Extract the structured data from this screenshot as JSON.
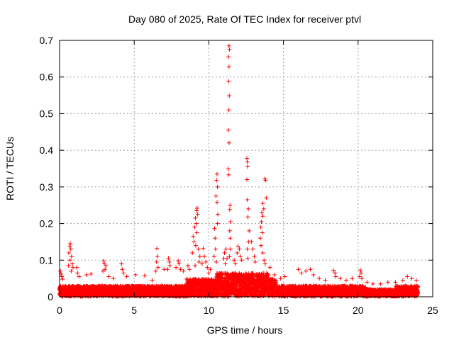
{
  "chart_data": {
    "type": "scatter",
    "title": "Day 080 of 2025, Rate Of TEC Index for receiver ptvl",
    "xlabel": "GPS time / hours",
    "ylabel": "ROTI / TECUs",
    "xlim": [
      0,
      25
    ],
    "ylim": [
      0,
      0.7
    ],
    "xticks": [
      "0",
      "5",
      "10",
      "15",
      "20",
      "25"
    ],
    "yticks": [
      "0",
      "0.1",
      "0.2",
      "0.3",
      "0.4",
      "0.5",
      "0.6",
      "0.7"
    ],
    "grid": true,
    "marker": "plus",
    "series_color": "#ff0000",
    "background_band": {
      "x_start": 0.0,
      "x_end": 24.0,
      "x_step": 0.02
    },
    "points": [
      [
        11.35,
        0.685
      ],
      [
        11.38,
        0.675
      ],
      [
        11.32,
        0.655
      ],
      [
        11.35,
        0.628
      ],
      [
        11.33,
        0.588
      ],
      [
        11.37,
        0.549
      ],
      [
        11.34,
        0.51
      ],
      [
        11.31,
        0.455
      ],
      [
        11.36,
        0.42
      ],
      [
        11.3,
        0.349
      ],
      [
        11.33,
        0.333
      ],
      [
        11.42,
        0.25
      ],
      [
        11.4,
        0.238
      ],
      [
        11.45,
        0.205
      ],
      [
        11.4,
        0.18
      ],
      [
        11.43,
        0.16
      ],
      [
        11.45,
        0.13
      ],
      [
        11.38,
        0.11
      ],
      [
        10.55,
        0.335
      ],
      [
        10.52,
        0.318
      ],
      [
        10.58,
        0.3
      ],
      [
        10.48,
        0.275
      ],
      [
        10.55,
        0.258
      ],
      [
        10.6,
        0.225
      ],
      [
        10.58,
        0.2
      ],
      [
        10.38,
        0.186
      ],
      [
        10.42,
        0.16
      ],
      [
        10.45,
        0.13
      ],
      [
        10.35,
        0.11
      ],
      [
        10.5,
        0.095
      ],
      [
        12.55,
        0.378
      ],
      [
        12.58,
        0.368
      ],
      [
        12.6,
        0.355
      ],
      [
        12.55,
        0.32
      ],
      [
        12.57,
        0.265
      ],
      [
        12.65,
        0.24
      ],
      [
        12.62,
        0.218
      ],
      [
        12.7,
        0.18
      ],
      [
        12.66,
        0.15
      ],
      [
        12.58,
        0.13
      ],
      [
        12.62,
        0.105
      ],
      [
        13.75,
        0.322
      ],
      [
        13.8,
        0.318
      ],
      [
        13.85,
        0.27
      ],
      [
        13.62,
        0.255
      ],
      [
        13.68,
        0.24
      ],
      [
        13.55,
        0.23
      ],
      [
        13.62,
        0.22
      ],
      [
        13.52,
        0.205
      ],
      [
        13.48,
        0.19
      ],
      [
        13.58,
        0.175
      ],
      [
        13.45,
        0.16
      ],
      [
        13.5,
        0.14
      ],
      [
        13.62,
        0.12
      ],
      [
        13.7,
        0.1
      ],
      [
        13.78,
        0.09
      ],
      [
        12.85,
        0.15
      ],
      [
        12.95,
        0.13
      ],
      [
        13.05,
        0.11
      ],
      [
        13.1,
        0.095
      ],
      [
        11.9,
        0.12
      ],
      [
        11.95,
        0.138
      ],
      [
        12.05,
        0.13
      ],
      [
        12.1,
        0.11
      ],
      [
        12.2,
        0.1
      ],
      [
        11.7,
        0.1
      ],
      [
        11.78,
        0.09
      ],
      [
        11.0,
        0.105
      ],
      [
        11.05,
        0.12
      ],
      [
        11.15,
        0.13
      ],
      [
        11.22,
        0.105
      ],
      [
        11.1,
        0.09
      ],
      [
        9.22,
        0.242
      ],
      [
        9.18,
        0.235
      ],
      [
        9.25,
        0.225
      ],
      [
        9.1,
        0.215
      ],
      [
        9.15,
        0.2
      ],
      [
        9.05,
        0.19
      ],
      [
        9.2,
        0.175
      ],
      [
        8.95,
        0.165
      ],
      [
        9.0,
        0.15
      ],
      [
        9.12,
        0.14
      ],
      [
        9.3,
        0.13
      ],
      [
        8.9,
        0.12
      ],
      [
        9.4,
        0.11
      ],
      [
        9.35,
        0.095
      ],
      [
        9.08,
        0.085
      ],
      [
        9.62,
        0.132
      ],
      [
        9.7,
        0.11
      ],
      [
        9.8,
        0.095
      ],
      [
        9.55,
        0.09
      ],
      [
        9.9,
        0.08
      ],
      [
        0.72,
        0.145
      ],
      [
        0.68,
        0.138
      ],
      [
        0.75,
        0.13
      ],
      [
        0.62,
        0.12
      ],
      [
        0.8,
        0.11
      ],
      [
        0.7,
        0.1
      ],
      [
        0.85,
        0.09
      ],
      [
        0.6,
        0.085
      ],
      [
        0.9,
        0.08
      ],
      [
        0.78,
        0.07
      ],
      [
        0.05,
        0.07
      ],
      [
        0.1,
        0.062
      ],
      [
        0.15,
        0.055
      ],
      [
        0.2,
        0.048
      ],
      [
        1.15,
        0.08
      ],
      [
        1.2,
        0.065
      ],
      [
        1.3,
        0.055
      ],
      [
        1.8,
        0.06
      ],
      [
        2.1,
        0.062
      ],
      [
        2.95,
        0.098
      ],
      [
        3.0,
        0.09
      ],
      [
        3.1,
        0.085
      ],
      [
        3.05,
        0.075
      ],
      [
        2.9,
        0.07
      ],
      [
        3.3,
        0.055
      ],
      [
        3.6,
        0.05
      ],
      [
        4.15,
        0.09
      ],
      [
        4.2,
        0.075
      ],
      [
        4.3,
        0.065
      ],
      [
        4.5,
        0.055
      ],
      [
        5.1,
        0.06
      ],
      [
        5.7,
        0.058
      ],
      [
        6.2,
        0.045
      ],
      [
        6.52,
        0.132
      ],
      [
        6.55,
        0.11
      ],
      [
        6.5,
        0.095
      ],
      [
        6.6,
        0.08
      ],
      [
        6.45,
        0.07
      ],
      [
        7.0,
        0.075
      ],
      [
        7.3,
        0.105
      ],
      [
        7.35,
        0.095
      ],
      [
        7.4,
        0.085
      ],
      [
        7.25,
        0.075
      ],
      [
        7.8,
        0.08
      ],
      [
        7.95,
        0.098
      ],
      [
        8.0,
        0.09
      ],
      [
        8.1,
        0.075
      ],
      [
        8.3,
        0.07
      ],
      [
        8.6,
        0.085
      ],
      [
        8.7,
        0.075
      ],
      [
        10.0,
        0.065
      ],
      [
        10.1,
        0.075
      ],
      [
        14.1,
        0.08
      ],
      [
        14.4,
        0.06
      ],
      [
        14.8,
        0.05
      ],
      [
        15.1,
        0.055
      ],
      [
        16.0,
        0.075
      ],
      [
        16.2,
        0.065
      ],
      [
        16.5,
        0.07
      ],
      [
        16.8,
        0.075
      ],
      [
        17.0,
        0.06
      ],
      [
        17.4,
        0.05
      ],
      [
        17.8,
        0.045
      ],
      [
        18.35,
        0.072
      ],
      [
        18.45,
        0.065
      ],
      [
        18.5,
        0.055
      ],
      [
        18.8,
        0.05
      ],
      [
        19.2,
        0.045
      ],
      [
        19.6,
        0.05
      ],
      [
        20.15,
        0.073
      ],
      [
        20.2,
        0.065
      ],
      [
        20.1,
        0.055
      ],
      [
        20.25,
        0.05
      ],
      [
        20.6,
        0.04
      ],
      [
        21.0,
        0.035
      ],
      [
        21.5,
        0.035
      ],
      [
        22.0,
        0.04
      ],
      [
        22.5,
        0.04
      ],
      [
        23.0,
        0.045
      ],
      [
        23.3,
        0.055
      ],
      [
        23.6,
        0.05
      ],
      [
        23.9,
        0.045
      ]
    ]
  }
}
